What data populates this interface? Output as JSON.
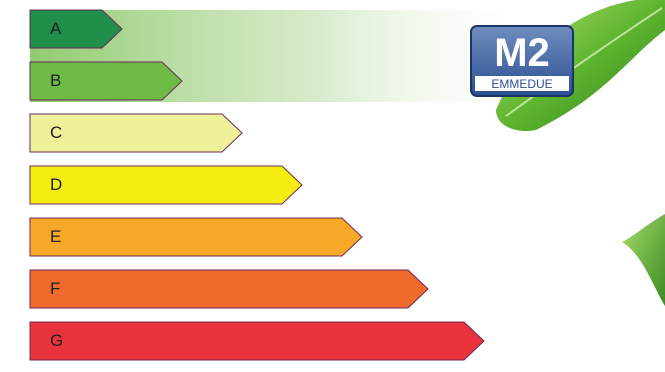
{
  "classes": [
    {
      "letter": "A",
      "color": "#1f8f4a"
    },
    {
      "letter": "B",
      "color": "#6dba45"
    },
    {
      "letter": "C",
      "color": "#f1f09a"
    },
    {
      "letter": "D",
      "color": "#f5ec12"
    },
    {
      "letter": "E",
      "color": "#f7a828"
    },
    {
      "letter": "F",
      "color": "#f06a2c"
    },
    {
      "letter": "G",
      "color": "#e9333c"
    }
  ],
  "logo": {
    "mark": "M2",
    "brand": "EMMEDUE"
  },
  "icons": [
    "leaf-icon",
    "logo"
  ],
  "band_color": "#8cc86a"
}
